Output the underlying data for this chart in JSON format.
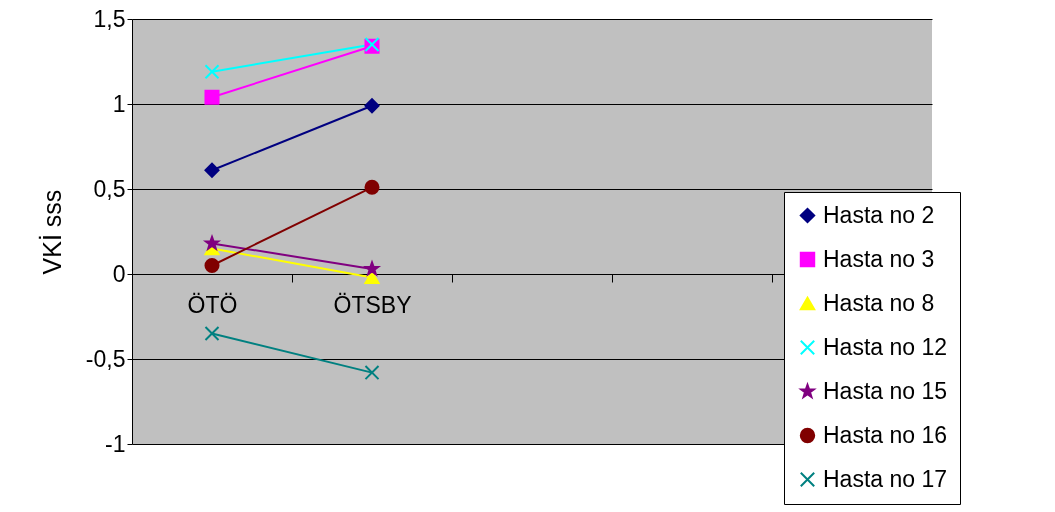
{
  "chart_data": {
    "type": "line",
    "ylabel": "VKİ sss",
    "categories": [
      "ÖTÖ",
      "ÖTSBY",
      null,
      null,
      null
    ],
    "ylim": [
      -1,
      1.5
    ],
    "yticks": [
      {
        "value": -1,
        "label": "-1"
      },
      {
        "value": -0.5,
        "label": "-0,5"
      },
      {
        "value": 0,
        "label": "0"
      },
      {
        "value": 0.5,
        "label": "0,5"
      },
      {
        "value": 1,
        "label": "1"
      },
      {
        "value": 1.5,
        "label": "1,5"
      }
    ],
    "grid": "y",
    "legend": "right",
    "series": [
      {
        "name": "Hasta no 2",
        "color": "#000080",
        "marker": "diamond",
        "values": [
          0.61,
          0.99,
          null,
          null,
          null
        ]
      },
      {
        "name": "Hasta no 3",
        "color": "#ff00ff",
        "marker": "square",
        "values": [
          1.04,
          1.34,
          null,
          null,
          null
        ]
      },
      {
        "name": "Hasta no 8",
        "color": "#ffff00",
        "marker": "triangle",
        "values": [
          0.15,
          -0.02,
          null,
          null,
          null
        ]
      },
      {
        "name": "Hasta no 12",
        "color": "#00ffff",
        "marker": "cross",
        "values": [
          1.19,
          1.35,
          null,
          null,
          null
        ]
      },
      {
        "name": "Hasta no 15",
        "color": "#800080",
        "marker": "star",
        "values": [
          0.18,
          0.03,
          null,
          null,
          null
        ]
      },
      {
        "name": "Hasta no 16",
        "color": "#800000",
        "marker": "circle",
        "values": [
          0.05,
          0.51,
          null,
          null,
          null
        ]
      },
      {
        "name": "Hasta no 17",
        "color": "#008080",
        "marker": "cross",
        "values": [
          -0.35,
          -0.58,
          null,
          null,
          null
        ]
      }
    ]
  }
}
